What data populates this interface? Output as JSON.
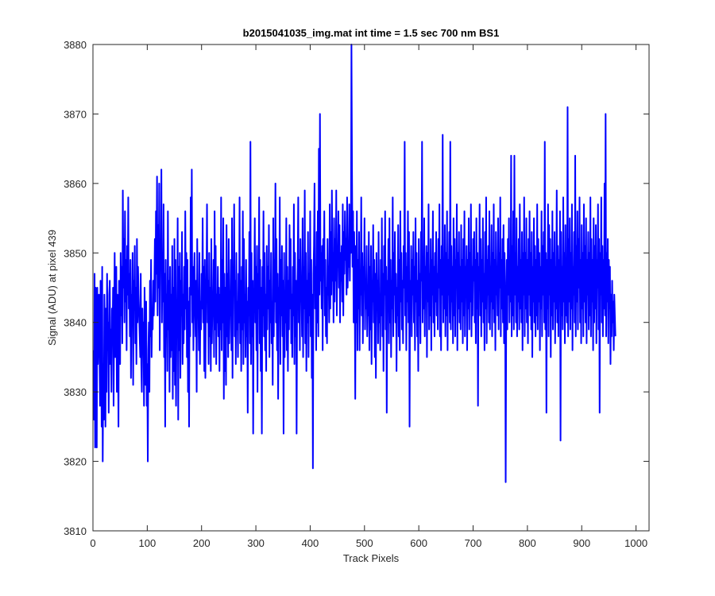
{
  "chart_data": {
    "type": "line",
    "title": "b2015041035_img.mat int time = 1.5 sec  700 nm BS1",
    "xlabel": "Track Pixels",
    "ylabel": "Signal (ADU) at pixel 439",
    "xlim": [
      0,
      1024
    ],
    "ylim": [
      3810,
      3880
    ],
    "xticks": [
      0,
      100,
      200,
      300,
      400,
      500,
      600,
      700,
      800,
      900,
      1000
    ],
    "yticks": [
      3810,
      3820,
      3830,
      3840,
      3850,
      3860,
      3870,
      3880
    ],
    "grid": false,
    "line_color": "#0000ff",
    "series": [
      {
        "x_start": 1,
        "x_step": 1,
        "values": [
          3836,
          3826,
          3847,
          3822,
          3845,
          3836,
          3822,
          3845,
          3834,
          3839,
          3844,
          3836,
          3828,
          3846,
          3840,
          3825,
          3848,
          3820,
          3834,
          3826,
          3844,
          3838,
          3825,
          3842,
          3830,
          3847,
          3836,
          3840,
          3827,
          3844,
          3846,
          3834,
          3839,
          3830,
          3842,
          3837,
          3845,
          3828,
          3840,
          3850,
          3835,
          3842,
          3848,
          3830,
          3844,
          3838,
          3825,
          3846,
          3840,
          3834,
          3850,
          3841,
          3848,
          3837,
          3859,
          3845,
          3852,
          3840,
          3856,
          3843,
          3849,
          3836,
          3851,
          3844,
          3858,
          3842,
          3847,
          3838,
          3849,
          3832,
          3844,
          3840,
          3850,
          3831,
          3846,
          3843,
          3851,
          3837,
          3845,
          3834,
          3852,
          3840,
          3848,
          3844,
          3841,
          3838,
          3835,
          3847,
          3834,
          3830,
          3842,
          3836,
          3840,
          3828,
          3845,
          3839,
          3831,
          3843,
          3828,
          3834,
          3820,
          3836,
          3840,
          3830,
          3846,
          3838,
          3849,
          3835,
          3842,
          3839,
          3846,
          3841,
          3845,
          3852,
          3843,
          3856,
          3847,
          3861,
          3841,
          3854,
          3845,
          3860,
          3836,
          3852,
          3848,
          3862,
          3840,
          3850,
          3843,
          3857,
          3835,
          3847,
          3825,
          3849,
          3838,
          3844,
          3833,
          3856,
          3839,
          3846,
          3830,
          3848,
          3835,
          3844,
          3836,
          3851,
          3829,
          3845,
          3833,
          3852,
          3831,
          3849,
          3828,
          3843,
          3840,
          3855,
          3826,
          3848,
          3836,
          3850,
          3832,
          3846,
          3841,
          3853,
          3834,
          3844,
          3837,
          3848,
          3839,
          3856,
          3842,
          3850,
          3835,
          3849,
          3830,
          3843,
          3825,
          3845,
          3838,
          3858,
          3844,
          3862,
          3840,
          3848,
          3836,
          3846,
          3850,
          3843,
          3838,
          3846,
          3830,
          3852,
          3841,
          3844,
          3836,
          3850,
          3834,
          3843,
          3839,
          3847,
          3842,
          3855,
          3840,
          3848,
          3833,
          3849,
          3832,
          3844,
          3845,
          3857,
          3840,
          3846,
          3834,
          3850,
          3838,
          3845,
          3833,
          3852,
          3837,
          3843,
          3841,
          3849,
          3835,
          3856,
          3839,
          3851,
          3834,
          3844,
          3840,
          3848,
          3838,
          3845,
          3833,
          3844,
          3839,
          3858,
          3836,
          3849,
          3840,
          3855,
          3829,
          3847,
          3833,
          3845,
          3831,
          3854,
          3838,
          3847,
          3835,
          3852,
          3837,
          3843,
          3841,
          3849,
          3836,
          3855,
          3832,
          3848,
          3845,
          3857,
          3838,
          3846,
          3834,
          3850,
          3839,
          3843,
          3835,
          3847,
          3840,
          3858,
          3837,
          3846,
          3833,
          3848,
          3839,
          3856,
          3834,
          3852,
          3840,
          3844,
          3835,
          3849,
          3838,
          3843,
          3827,
          3845,
          3841,
          3853,
          3837,
          3866,
          3834,
          3850,
          3838,
          3846,
          3824,
          3842,
          3845,
          3855,
          3840,
          3848,
          3836,
          3851,
          3830,
          3847,
          3842,
          3858,
          3837,
          3849,
          3833,
          3845,
          3824,
          3848,
          3841,
          3856,
          3838,
          3850,
          3836,
          3844,
          3833,
          3851,
          3839,
          3848,
          3842,
          3854,
          3835,
          3846,
          3840,
          3850,
          3837,
          3843,
          3831,
          3855,
          3838,
          3849,
          3843,
          3860,
          3840,
          3852,
          3836,
          3847,
          3829,
          3845,
          3842,
          3858,
          3834,
          3849,
          3841,
          3851,
          3838,
          3846,
          3824,
          3850,
          3835,
          3844,
          3840,
          3855,
          3836,
          3848,
          3833,
          3846,
          3839,
          3854,
          3842,
          3852,
          3837,
          3844,
          3835,
          3848,
          3841,
          3857,
          3834,
          3850,
          3838,
          3846,
          3824,
          3843,
          3848,
          3858,
          3840,
          3849,
          3836,
          3852,
          3843,
          3846,
          3838,
          3855,
          3835,
          3848,
          3842,
          3859,
          3837,
          3850,
          3833,
          3846,
          3840,
          3853,
          3835,
          3847,
          3841,
          3856,
          3838,
          3849,
          3832,
          3844,
          3819,
          3847,
          3851,
          3860,
          3842,
          3848,
          3836,
          3853,
          3840,
          3856,
          3838,
          3865,
          3844,
          3870,
          3846,
          3850,
          3842,
          3851,
          3836,
          3852,
          3847,
          3856,
          3841,
          3849,
          3838,
          3845,
          3837,
          3852,
          3844,
          3848,
          3840,
          3857,
          3842,
          3853,
          3844,
          3859,
          3846,
          3850,
          3840,
          3855,
          3843,
          3852,
          3846,
          3859,
          3841,
          3850,
          3848,
          3856,
          3845,
          3854,
          3840,
          3850,
          3846,
          3851,
          3843,
          3857,
          3841,
          3853,
          3847,
          3856,
          3849,
          3852,
          3844,
          3858,
          3845,
          3851,
          3848,
          3857,
          3846,
          3854,
          3850,
          3880,
          3862,
          3848,
          3856,
          3840,
          3853,
          3845,
          3829,
          3851,
          3840,
          3856,
          3836,
          3849,
          3842,
          3853,
          3836,
          3847,
          3844,
          3858,
          3841,
          3850,
          3837,
          3848,
          3845,
          3855,
          3839,
          3846,
          3842,
          3851,
          3838,
          3844,
          3841,
          3853,
          3836,
          3848,
          3839,
          3851,
          3834,
          3846,
          3843,
          3854,
          3840,
          3849,
          3835,
          3847,
          3832,
          3850,
          3842,
          3846,
          3837,
          3853,
          3840,
          3844,
          3836,
          3849,
          3841,
          3855,
          3838,
          3847,
          3833,
          3851,
          3844,
          3856,
          3839,
          3848,
          3827,
          3846,
          3842,
          3852,
          3837,
          3855,
          3840,
          3849,
          3835,
          3846,
          3842,
          3858,
          3838,
          3850,
          3844,
          3853,
          3840,
          3847,
          3833,
          3845,
          3841,
          3854,
          3838,
          3849,
          3836,
          3856,
          3843,
          3850,
          3839,
          3846,
          3837,
          3851,
          3845,
          3866,
          3841,
          3850,
          3836,
          3848,
          3843,
          3856,
          3840,
          3853,
          3825,
          3846,
          3842,
          3851,
          3838,
          3849,
          3844,
          3853,
          3840,
          3848,
          3836,
          3855,
          3843,
          3850,
          3838,
          3846,
          3833,
          3852,
          3841,
          3847,
          3837,
          3853,
          3846,
          3866,
          3840,
          3849,
          3842,
          3855,
          3838,
          3848,
          3844,
          3851,
          3835,
          3850,
          3843,
          3857,
          3839,
          3847,
          3841,
          3852,
          3836,
          3849,
          3844,
          3856,
          3840,
          3848,
          3838,
          3850,
          3843,
          3853,
          3841,
          3847,
          3839,
          3852,
          3845,
          3857,
          3838,
          3849,
          3836,
          3851,
          3844,
          3867,
          3840,
          3848,
          3842,
          3854,
          3838,
          3850,
          3841,
          3856,
          3836,
          3849,
          3844,
          3853,
          3840,
          3866,
          3839,
          3851,
          3843,
          3848,
          3837,
          3855,
          3841,
          3852,
          3838,
          3849,
          3845,
          3857,
          3836,
          3850,
          3842,
          3853,
          3840,
          3848,
          3839,
          3854,
          3843,
          3849,
          3837,
          3852,
          3841,
          3856,
          3838,
          3848,
          3844,
          3851,
          3836,
          3849,
          3842,
          3855,
          3839,
          3850,
          3843,
          3857,
          3838,
          3848,
          3841,
          3852,
          3846,
          3853,
          3840,
          3849,
          3837,
          3855,
          3842,
          3850,
          3828,
          3848,
          3845,
          3857,
          3841,
          3852,
          3838,
          3849,
          3843,
          3855,
          3840,
          3847,
          3836,
          3853,
          3842,
          3858,
          3837,
          3849,
          3844,
          3851,
          3840,
          3856,
          3839,
          3848,
          3843,
          3854,
          3838,
          3850,
          3842,
          3857,
          3840,
          3849,
          3836,
          3853,
          3844,
          3848,
          3841,
          3855,
          3839,
          3850,
          3845,
          3858,
          3838,
          3849,
          3842,
          3852,
          3840,
          3854,
          3837,
          3850,
          3843,
          3817,
          3841,
          3849,
          3839,
          3852,
          3844,
          3855,
          3840,
          3848,
          3843,
          3864,
          3838,
          3851,
          3841,
          3856,
          3839,
          3864,
          3844,
          3850,
          3840,
          3855,
          3838,
          3848,
          3843,
          3852,
          3839,
          3857,
          3842,
          3849,
          3840,
          3853,
          3836,
          3850,
          3844,
          3858,
          3838,
          3850,
          3842,
          3855,
          3840,
          3849,
          3837,
          3852,
          3844,
          3856,
          3841,
          3850,
          3839,
          3853,
          3835,
          3848,
          3843,
          3855,
          3840,
          3851,
          3838,
          3849,
          3841,
          3857,
          3839,
          3852,
          3843,
          3850,
          3836,
          3848,
          3842,
          3856,
          3838,
          3851,
          3844,
          3853,
          3840,
          3866,
          3839,
          3850,
          3827,
          3849,
          3842,
          3857,
          3838,
          3854,
          3844,
          3852,
          3835,
          3849,
          3841,
          3856,
          3839,
          3850,
          3843,
          3853,
          3837,
          3848,
          3842,
          3859,
          3840,
          3851,
          3838,
          3849,
          3844,
          3856,
          3823,
          3853,
          3841,
          3848,
          3839,
          3858,
          3843,
          3850,
          3837,
          3854,
          3841,
          3849,
          3840,
          3871,
          3838,
          3852,
          3843,
          3855,
          3839,
          3850,
          3842,
          3857,
          3836,
          3848,
          3844,
          3853,
          3840,
          3864,
          3838,
          3851,
          3843,
          3856,
          3839,
          3852,
          3845,
          3858,
          3840,
          3849,
          3837,
          3854,
          3842,
          3850,
          3838,
          3857,
          3843,
          3851,
          3840,
          3855,
          3837,
          3849,
          3844,
          3853,
          3839,
          3850,
          3841,
          3858,
          3838,
          3852,
          3843,
          3849,
          3836,
          3855,
          3840,
          3851,
          3842,
          3854,
          3837,
          3849,
          3845,
          3857,
          3839,
          3852,
          3827,
          3850,
          3844,
          3858,
          3840,
          3851,
          3838,
          3849,
          3842,
          3860,
          3841,
          3870,
          3838,
          3850,
          3843,
          3852,
          3837,
          3849,
          3842,
          3848,
          3834,
          3844,
          3838,
          3846,
          3840,
          3843,
          3836,
          3844,
          3841,
          3838
        ]
      }
    ]
  }
}
